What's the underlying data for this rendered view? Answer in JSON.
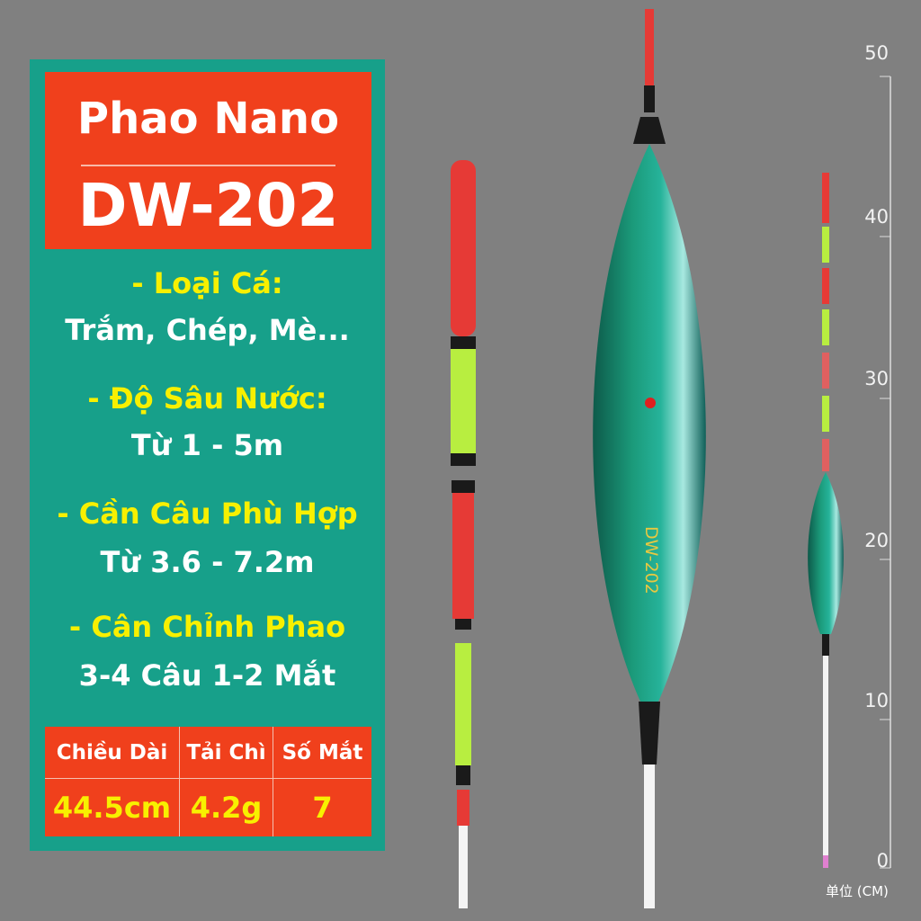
{
  "title": {
    "line1": "Phao Nano",
    "line2": "DW-202"
  },
  "specs": [
    {
      "label": "- Loại Cá:",
      "value": "Trắm, Chép, Mè..."
    },
    {
      "label": "- Độ Sâu Nước:",
      "value": "Từ 1 - 5m"
    },
    {
      "label": "- Cần Câu Phù Hợp",
      "value": "Từ 3.6 - 7.2m"
    },
    {
      "label": "- Cân Chỉnh Phao",
      "value": "3-4 Câu 1-2 Mắt"
    }
  ],
  "table": {
    "headers": [
      "Chiều Dài",
      "Tải Chì",
      "Số Mắt"
    ],
    "values": [
      "44.5cm",
      "4.2g",
      "7"
    ]
  },
  "float_body_text": "DW-202",
  "ruler": {
    "ticks": [
      "50",
      "40",
      "30",
      "20",
      "10",
      "0"
    ],
    "unit": "单位 (CM)"
  },
  "colors": {
    "panel": "#17a08a",
    "title_box": "#f0401c",
    "label_text": "#f8f000",
    "float_body": "#1d8a6a"
  }
}
